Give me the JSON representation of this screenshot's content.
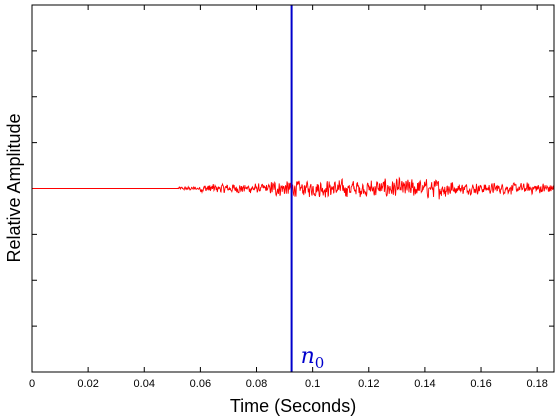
{
  "chart_data": {
    "type": "line",
    "xlabel": "Time (Seconds)",
    "ylabel": "Relative Amplitude",
    "xlim": [
      0,
      0.186
    ],
    "ylim": [
      -1,
      1
    ],
    "x_ticks": [
      0,
      0.02,
      0.04,
      0.06,
      0.08,
      0.1,
      0.12,
      0.14,
      0.16,
      0.18
    ],
    "x_tick_labels": [
      "0",
      "0.02",
      "0.04",
      "0.06",
      "0.08",
      "0.1",
      "0.12",
      "0.14",
      "0.16",
      "0.18"
    ],
    "y_tick_labels_shown": false,
    "grid": false,
    "series": [
      {
        "color": "#ff0000",
        "signal": {
          "t_start": 0,
          "t_end": 0.186,
          "baseline": 0,
          "noise_onset": 0.052,
          "segments": [
            {
              "from": 0.052,
              "to": 0.06,
              "peak_amplitude": 0.012
            },
            {
              "from": 0.06,
              "to": 0.085,
              "peak_amplitude": 0.03
            },
            {
              "from": 0.085,
              "to": 0.1,
              "peak_amplitude": 0.05
            },
            {
              "from": 0.1,
              "to": 0.12,
              "peak_amplitude": 0.055
            },
            {
              "from": 0.12,
              "to": 0.15,
              "peak_amplitude": 0.06
            },
            {
              "from": 0.15,
              "to": 0.186,
              "peak_amplitude": 0.035
            }
          ]
        }
      }
    ],
    "annotations": [
      {
        "type": "vline",
        "x": 0.0925,
        "color": "#0000cc",
        "label_main": "n",
        "label_sub": "0"
      }
    ]
  }
}
